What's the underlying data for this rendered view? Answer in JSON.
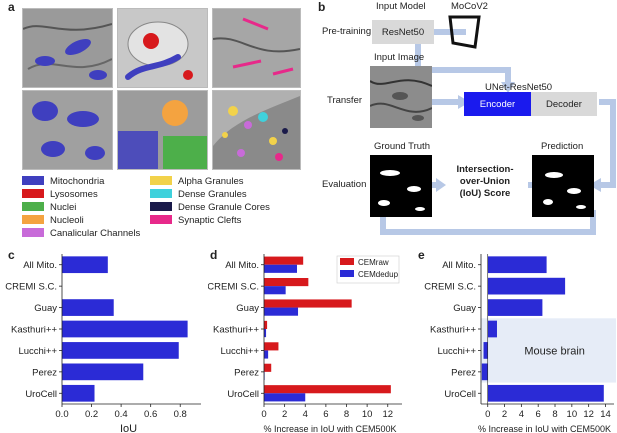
{
  "panels": {
    "a": "a",
    "b": "b",
    "c": "c",
    "d": "d",
    "e": "e"
  },
  "legend": {
    "items": [
      {
        "label": "Mitochondria",
        "color": "#3f3fbf"
      },
      {
        "label": "Lysosomes",
        "color": "#d7191c"
      },
      {
        "label": "Nuclei",
        "color": "#4daf4a"
      },
      {
        "label": "Nucleoli",
        "color": "#f4a340"
      },
      {
        "label": "Canalicular Channels",
        "color": "#c86bd9"
      },
      {
        "label": "Alpha Granules",
        "color": "#f2d24a"
      },
      {
        "label": "Dense Granules",
        "color": "#3fd1dc"
      },
      {
        "label": "Dense Granule Cores",
        "color": "#1a1a4a"
      },
      {
        "label": "Synaptic Clefts",
        "color": "#e7298a"
      }
    ]
  },
  "diagram": {
    "input_model": "Input Model",
    "mocov2": "MoCoV2",
    "pretraining": "Pre-training",
    "resnet50": "ResNet50",
    "input_image": "Input Image",
    "unet_resnet50": "UNet-ResNet50",
    "transfer": "Transfer",
    "encoder": "Encoder",
    "decoder": "Decoder",
    "ground_truth": "Ground Truth",
    "prediction": "Prediction",
    "evaluation": "Evaluation",
    "iou_line1": "Intersection-",
    "iou_line2": "over-Union",
    "iou_line3": "(IoU) Score",
    "encoder_color": "#1a1aee",
    "arrow_color": "#b7c8e6"
  },
  "chart_data": [
    {
      "id": "c",
      "type": "bar",
      "orientation": "horizontal",
      "categories": [
        "All Mito.",
        "CREMI S.C.",
        "Guay",
        "Kasthuri++",
        "Lucchi++",
        "Perez",
        "UroCell"
      ],
      "values": [
        0.31,
        0.0,
        0.35,
        0.85,
        0.79,
        0.55,
        0.22
      ],
      "xlabel": "IoU",
      "xlim": [
        0,
        0.9
      ],
      "xticks": [
        "0.0",
        "0.2",
        "0.4",
        "0.6",
        "0.8"
      ],
      "color": "#2b2bd6"
    },
    {
      "id": "d",
      "type": "bar",
      "orientation": "horizontal",
      "categories": [
        "All Mito.",
        "CREMI S.C.",
        "Guay",
        "Kasthuri++",
        "Lucchi++",
        "Perez",
        "UroCell"
      ],
      "series": [
        {
          "name": "CEMraw",
          "color": "#d7191c",
          "values": [
            3.8,
            4.3,
            8.5,
            0.3,
            1.4,
            0.7,
            12.3
          ]
        },
        {
          "name": "CEMdedup",
          "color": "#2b2bd6",
          "values": [
            3.2,
            2.1,
            3.3,
            0.2,
            0.4,
            0.0,
            4.0
          ]
        }
      ],
      "xlabel": "% Increase in IoU with CEM500K",
      "xlim": [
        0,
        12.8
      ],
      "xticks": [
        "0",
        "2",
        "4",
        "6",
        "8",
        "10",
        "12"
      ],
      "legend_position": "top-right"
    },
    {
      "id": "e",
      "type": "bar",
      "orientation": "horizontal",
      "categories": [
        "All Mito.",
        "CREMI S.C.",
        "Guay",
        "Kasthuri++",
        "Lucchi++",
        "Perez",
        "UroCell"
      ],
      "values": [
        7.0,
        9.2,
        6.5,
        1.1,
        -0.5,
        -0.7,
        13.8
      ],
      "xlabel": "% Increase in IoU with CEM500K",
      "xlim": [
        -0.8,
        14.3
      ],
      "xticks": [
        "0",
        "2",
        "4",
        "6",
        "8",
        "10",
        "12",
        "14"
      ],
      "annotation": "Mouse brain",
      "color": "#2b2bd6",
      "highlight_color": "#e6ecf7"
    }
  ]
}
